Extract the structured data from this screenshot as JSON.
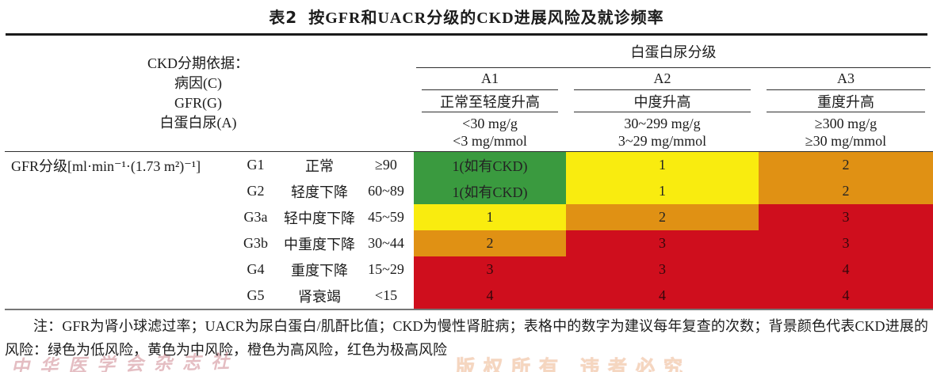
{
  "title": {
    "label": "表2",
    "text": "按GFR和UACR分级的CKD进展风险及就诊频率"
  },
  "header": {
    "left_lines": [
      "CKD分期依据：",
      "病因(C)",
      "GFR(G)",
      "白蛋白尿(A)"
    ],
    "albuminuria_title": "白蛋白尿分级",
    "columns": [
      {
        "code": "A1",
        "severity": "正常至轻度升高",
        "range1": "<30 mg/g",
        "range2": "<3 mg/mmol"
      },
      {
        "code": "A2",
        "severity": "中度升高",
        "range1": "30~299 mg/g",
        "range2": "3~29 mg/mmol"
      },
      {
        "code": "A3",
        "severity": "重度升高",
        "range1": "≥300 mg/g",
        "range2": "≥30 mg/mmol"
      }
    ]
  },
  "body": {
    "gfr_label": "GFR分级[ml·min⁻¹·(1.73 m²)⁻¹]",
    "rows": [
      {
        "code": "G1",
        "desc": "正常",
        "range": "≥90",
        "cells": [
          {
            "text": "1(如有CKD)",
            "risk": "low"
          },
          {
            "text": "1",
            "risk": "moderate"
          },
          {
            "text": "2",
            "risk": "high"
          }
        ]
      },
      {
        "code": "G2",
        "desc": "轻度下降",
        "range": "60~89",
        "cells": [
          {
            "text": "1(如有CKD)",
            "risk": "low"
          },
          {
            "text": "1",
            "risk": "moderate"
          },
          {
            "text": "2",
            "risk": "high"
          }
        ]
      },
      {
        "code": "G3a",
        "desc": "轻中度下降",
        "range": "45~59",
        "cells": [
          {
            "text": "1",
            "risk": "moderate"
          },
          {
            "text": "2",
            "risk": "high"
          },
          {
            "text": "3",
            "risk": "very-high"
          }
        ]
      },
      {
        "code": "G3b",
        "desc": "中重度下降",
        "range": "30~44",
        "cells": [
          {
            "text": "2",
            "risk": "high"
          },
          {
            "text": "3",
            "risk": "very-high"
          },
          {
            "text": "3",
            "risk": "very-high"
          }
        ]
      },
      {
        "code": "G4",
        "desc": "重度下降",
        "range": "15~29",
        "cells": [
          {
            "text": "3",
            "risk": "very-high"
          },
          {
            "text": "3",
            "risk": "very-high"
          },
          {
            "text": "4",
            "risk": "very-high"
          }
        ]
      },
      {
        "code": "G5",
        "desc": "肾衰竭",
        "range": "<15",
        "cells": [
          {
            "text": "4",
            "risk": "very-high"
          },
          {
            "text": "4",
            "risk": "very-high"
          },
          {
            "text": "4",
            "risk": "very-high"
          }
        ]
      }
    ]
  },
  "colors": {
    "low": "#3a9a3f",
    "moderate": "#f9ec0f",
    "high": "#e09114",
    "very_high": "#cf0e1d"
  },
  "note": "注：GFR为肾小球滤过率；UACR为尿白蛋白/肌酐比值；CKD为慢性肾脏病；表格中的数字为建议每年复查的次数；背景颜色代表CKD进展的风险：绿色为低风险，黄色为中风险，橙色为高风险，红色为极高风险",
  "watermark": {
    "left": "中华医学会杂志社",
    "right": "版权所有 违者必究"
  }
}
